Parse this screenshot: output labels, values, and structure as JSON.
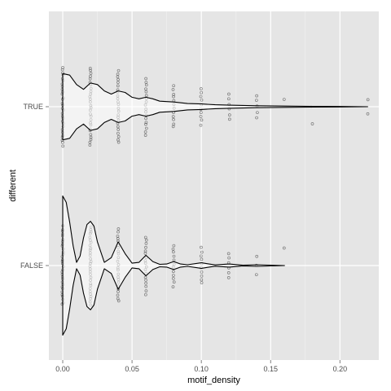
{
  "chart_data": {
    "type": "violin",
    "title": "",
    "xlabel": "motif_density",
    "ylabel": "different",
    "xlim": [
      -0.01,
      0.228
    ],
    "x_ticks": [
      {
        "value": 0.0,
        "label": "0.00"
      },
      {
        "value": 0.05,
        "label": "0.05"
      },
      {
        "value": 0.1,
        "label": "0.10"
      },
      {
        "value": 0.15,
        "label": "0.15"
      },
      {
        "value": 0.2,
        "label": "0.20"
      }
    ],
    "categories": [
      "TRUE",
      "FALSE"
    ],
    "grid": true,
    "panel_color": "#e5e5e5",
    "grid_color": "#ffffff",
    "point_color": "#333333",
    "line_color": "#000000",
    "series": [
      {
        "category": "TRUE",
        "violin_range": [
          0.0,
          0.22
        ],
        "density_profile": [
          [
            0.0,
            0.42
          ],
          [
            0.005,
            0.4
          ],
          [
            0.01,
            0.28
          ],
          [
            0.015,
            0.22
          ],
          [
            0.02,
            0.3
          ],
          [
            0.025,
            0.28
          ],
          [
            0.03,
            0.2
          ],
          [
            0.035,
            0.16
          ],
          [
            0.04,
            0.2
          ],
          [
            0.045,
            0.18
          ],
          [
            0.05,
            0.12
          ],
          [
            0.055,
            0.1
          ],
          [
            0.06,
            0.12
          ],
          [
            0.065,
            0.1
          ],
          [
            0.07,
            0.07
          ],
          [
            0.08,
            0.06
          ],
          [
            0.09,
            0.04
          ],
          [
            0.1,
            0.035
          ],
          [
            0.11,
            0.025
          ],
          [
            0.12,
            0.02
          ],
          [
            0.14,
            0.012
          ],
          [
            0.16,
            0.008
          ],
          [
            0.18,
            0.005
          ],
          [
            0.2,
            0.003
          ],
          [
            0.22,
            0.0
          ]
        ],
        "points": [
          {
            "x": 0.0,
            "n": 30
          },
          {
            "x": 0.02,
            "n": 28
          },
          {
            "x": 0.04,
            "n": 24
          },
          {
            "x": 0.06,
            "n": 18
          },
          {
            "x": 0.08,
            "n": 12
          },
          {
            "x": 0.1,
            "n": 10
          },
          {
            "x": 0.12,
            "n": 6
          },
          {
            "x": 0.14,
            "n": 5
          },
          {
            "x": 0.16,
            "n": 1
          },
          {
            "x": 0.18,
            "n": 1
          },
          {
            "x": 0.22,
            "n": 2
          }
        ]
      },
      {
        "category": "FALSE",
        "violin_range": [
          0.0,
          0.16
        ],
        "density_profile": [
          [
            0.0,
            0.88
          ],
          [
            0.0025,
            0.8
          ],
          [
            0.005,
            0.55
          ],
          [
            0.0075,
            0.25
          ],
          [
            0.01,
            0.04
          ],
          [
            0.0125,
            0.12
          ],
          [
            0.015,
            0.35
          ],
          [
            0.0175,
            0.52
          ],
          [
            0.02,
            0.56
          ],
          [
            0.0225,
            0.5
          ],
          [
            0.025,
            0.3
          ],
          [
            0.03,
            0.04
          ],
          [
            0.035,
            0.1
          ],
          [
            0.04,
            0.3
          ],
          [
            0.045,
            0.15
          ],
          [
            0.05,
            0.03
          ],
          [
            0.055,
            0.04
          ],
          [
            0.06,
            0.13
          ],
          [
            0.065,
            0.05
          ],
          [
            0.07,
            0.015
          ],
          [
            0.075,
            0.02
          ],
          [
            0.08,
            0.05
          ],
          [
            0.085,
            0.02
          ],
          [
            0.09,
            0.01
          ],
          [
            0.1,
            0.035
          ],
          [
            0.11,
            0.008
          ],
          [
            0.12,
            0.02
          ],
          [
            0.13,
            0.004
          ],
          [
            0.14,
            0.01
          ],
          [
            0.16,
            0.0
          ]
        ],
        "points": [
          {
            "x": 0.0,
            "n": 32
          },
          {
            "x": 0.02,
            "n": 30
          },
          {
            "x": 0.04,
            "n": 24
          },
          {
            "x": 0.06,
            "n": 18
          },
          {
            "x": 0.08,
            "n": 12
          },
          {
            "x": 0.1,
            "n": 10
          },
          {
            "x": 0.12,
            "n": 6
          },
          {
            "x": 0.14,
            "n": 3
          },
          {
            "x": 0.16,
            "n": 1
          }
        ]
      }
    ]
  }
}
